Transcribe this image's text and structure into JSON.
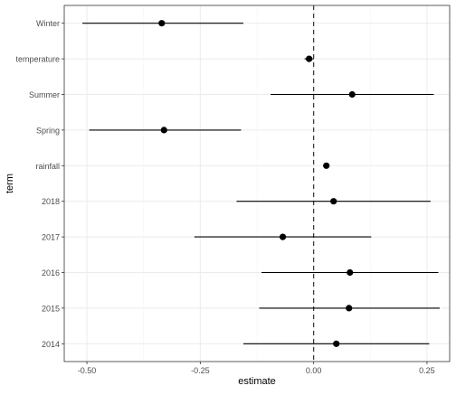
{
  "chart_data": {
    "type": "scatter",
    "subtype": "coefficient-plot-with-horizontal-error-bars",
    "xlabel": "estimate",
    "ylabel": "term",
    "xlim": [
      -0.55,
      0.3
    ],
    "x_ticks": [
      -0.5,
      -0.25,
      0,
      0.25
    ],
    "x_tick_labels": [
      "-0.50",
      "-0.25",
      "0.00",
      "0.25"
    ],
    "reference_line": {
      "x": 0,
      "style": "dashed"
    },
    "grid": true,
    "terms": [
      "Winter",
      "temperature",
      "Summer",
      "Spring",
      "rainfall",
      "2018",
      "2017",
      "2016",
      "2015",
      "2014"
    ],
    "estimates": [
      {
        "term": "Winter",
        "estimate": -0.335,
        "low": -0.51,
        "high": -0.155
      },
      {
        "term": "temperature",
        "estimate": -0.01,
        "low": -0.02,
        "high": 0.0
      },
      {
        "term": "Summer",
        "estimate": 0.085,
        "low": -0.095,
        "high": 0.265
      },
      {
        "term": "Spring",
        "estimate": -0.33,
        "low": -0.495,
        "high": -0.16
      },
      {
        "term": "rainfall",
        "estimate": 0.028,
        "low": 0.028,
        "high": 0.028
      },
      {
        "term": "2018",
        "estimate": 0.044,
        "low": -0.17,
        "high": 0.258
      },
      {
        "term": "2017",
        "estimate": -0.068,
        "low": -0.263,
        "high": 0.127
      },
      {
        "term": "2016",
        "estimate": 0.08,
        "low": -0.115,
        "high": 0.275
      },
      {
        "term": "2015",
        "estimate": 0.078,
        "low": -0.12,
        "high": 0.278
      },
      {
        "term": "2014",
        "estimate": 0.05,
        "low": -0.155,
        "high": 0.255
      }
    ],
    "colors": {
      "point": "#000000",
      "errorbar": "#000000",
      "grid_major": "#ebebeb",
      "grid_minor": "#f5f5f5",
      "panel_border": "#333333",
      "axis_text": "#4d4d4d",
      "axis_title": "#000000"
    }
  }
}
